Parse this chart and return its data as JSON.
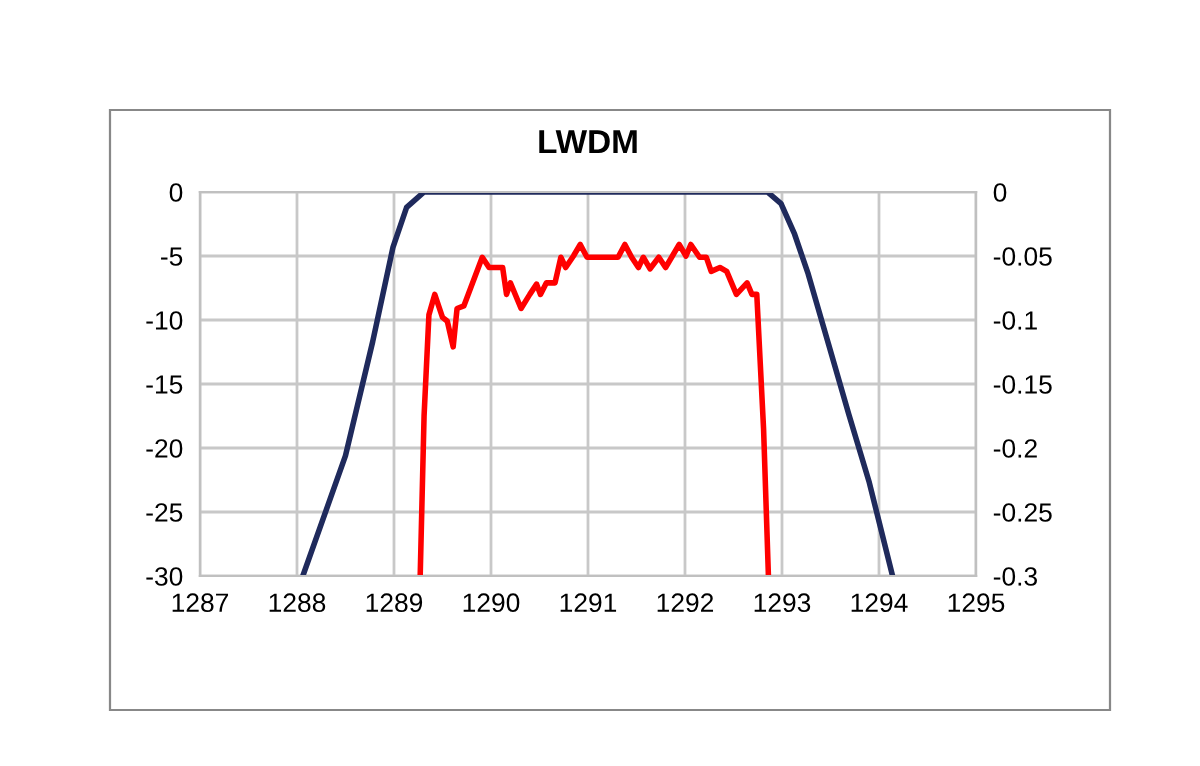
{
  "chart_data": {
    "type": "line",
    "title": "LWDM",
    "xlim": [
      1287,
      1295
    ],
    "xticks": [
      1287,
      1288,
      1289,
      1290,
      1291,
      1292,
      1293,
      1294,
      1295
    ],
    "ylim": [
      -30,
      0
    ],
    "yticks": [
      -30,
      -25,
      -20,
      -15,
      -10,
      -5,
      0
    ],
    "y2lim": [
      -0.3,
      0
    ],
    "y2ticks": [
      -0.3,
      -0.25,
      -0.2,
      -0.15,
      -0.1,
      -0.05,
      0
    ],
    "grid": true,
    "legend": false,
    "marker": "none",
    "line_style": "solid",
    "series": [
      {
        "color": "#1f2a5c",
        "x": [
          1288.06,
          1288.5,
          1288.78,
          1288.99,
          1289.13,
          1289.31,
          1292.85,
          1292.99,
          1293.13,
          1293.27,
          1293.48,
          1293.69,
          1293.9,
          1294.14
        ],
        "values": [
          -30,
          -20.6,
          -11.7,
          -4.3,
          -1.2,
          0,
          0,
          -0.9,
          -3.3,
          -6.4,
          -11.9,
          -17.4,
          -22.7,
          -30
        ]
      },
      {
        "color": "#ff0000",
        "axis": "y2",
        "x": [
          1289.27,
          1289.31,
          1289.36,
          1289.42,
          1289.5,
          1289.55,
          1289.61,
          1289.65,
          1289.72,
          1289.91,
          1289.98,
          1290.12,
          1290.16,
          1290.2,
          1290.31,
          1290.4,
          1290.47,
          1290.51,
          1290.57,
          1290.66,
          1290.72,
          1290.77,
          1290.85,
          1290.92,
          1290.99,
          1291.31,
          1291.38,
          1291.45,
          1291.52,
          1291.57,
          1291.64,
          1291.73,
          1291.8,
          1291.87,
          1291.94,
          1292.01,
          1292.06,
          1292.15,
          1292.22,
          1292.27,
          1292.36,
          1292.43,
          1292.53,
          1292.64,
          1292.69,
          1292.74,
          1292.81,
          1292.86
        ],
        "values": [
          -0.3,
          -0.175,
          -0.096,
          -0.08,
          -0.098,
          -0.101,
          -0.121,
          -0.091,
          -0.089,
          -0.051,
          -0.059,
          -0.059,
          -0.08,
          -0.071,
          -0.091,
          -0.08,
          -0.072,
          -0.08,
          -0.071,
          -0.071,
          -0.051,
          -0.059,
          -0.05,
          -0.041,
          -0.051,
          -0.051,
          -0.041,
          -0.051,
          -0.059,
          -0.051,
          -0.06,
          -0.051,
          -0.059,
          -0.05,
          -0.041,
          -0.05,
          -0.041,
          -0.051,
          -0.051,
          -0.062,
          -0.059,
          -0.062,
          -0.08,
          -0.071,
          -0.08,
          -0.08,
          -0.185,
          -0.3
        ]
      }
    ]
  }
}
